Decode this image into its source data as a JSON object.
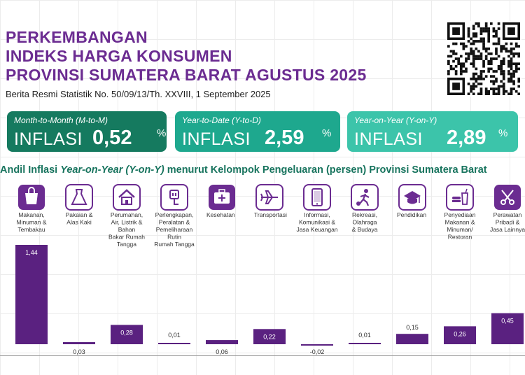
{
  "header": {
    "title_lines": [
      "PERKEMBANGAN",
      "INDEKS HARGA KONSUMEN",
      "PROVINSI SUMATERA BARAT AGUSTUS 2025"
    ],
    "subtitle": "Berita Resmi Statistik No. 50/09/13/Th. XXVIII, 1 September 2025"
  },
  "cards": [
    {
      "title": "Month-to-Month (M-to-M)",
      "word": "INFLASI",
      "value": "0,52",
      "pct": "%",
      "color": "#157a5f"
    },
    {
      "title": "Year-to-Date (Y-to-D)",
      "word": "INFLASI",
      "value": "2,59",
      "pct": "%",
      "color": "#1ea88e"
    },
    {
      "title": "Year-on-Year (Y-on-Y)",
      "word": "INFLASI",
      "value": "2,89",
      "pct": "%",
      "color": "#3cc4aa"
    }
  ],
  "chart_title": {
    "part1": "Andil Inflasi ",
    "part2": "Year-on-Year (Y-on-Y)",
    "part3": " menurut Kelompok Pengeluaran (persen) Provinsi Sumatera Barat"
  },
  "colors": {
    "title": "#6b2c91",
    "bar": "#5a2180",
    "icon": "#6b2c91",
    "chart_title": "#18745e"
  },
  "chart_data": {
    "type": "bar",
    "categories": [
      "Makanan, Minuman & Tembakau",
      "Pakaian & Alas Kaki",
      "Perumahan, Air, Listrik & Bahan Bakar Rumah Tangga",
      "Perlengkapan, Peralatan & Pemeliharaan Rutin Rumah Tangga",
      "Kesehatan",
      "Transportasi",
      "Informasi, Komunikasi & Jasa Keuangan",
      "Rekreasi, Olahraga & Budaya",
      "Pendidikan",
      "Penyediaan Makanan & Minuman/ Restoran",
      "Perawatan Pribadi & Jasa Lainnya"
    ],
    "category_lines": [
      [
        "Makanan,",
        "Minuman &",
        "Tembakau"
      ],
      [
        "Pakaian &",
        "Alas Kaki"
      ],
      [
        "Perumahan,",
        "Air, Listrik &",
        "Bahan",
        "Bakar Rumah",
        "Tangga"
      ],
      [
        "Perlengkapan,",
        "Peralatan &",
        "Pemeliharaan",
        "Rutin",
        "Rumah Tangga"
      ],
      [
        "Kesehatan"
      ],
      [
        "Transportasi"
      ],
      [
        "Informasi,",
        "Komunikasi &",
        "Jasa Keuangan"
      ],
      [
        "Rekreasi,",
        "Olahraga",
        "& Budaya"
      ],
      [
        "Pendidikan"
      ],
      [
        "Penyediaan",
        "Makanan &",
        "Minuman/",
        "Restoran"
      ],
      [
        "Perawatan",
        "Pribadi &",
        "Jasa Lainnya"
      ]
    ],
    "icons": [
      "grocery-bag-icon",
      "dress-icon",
      "house-icon",
      "plug-icon",
      "medical-kit-icon",
      "airplane-icon",
      "smartphone-icon",
      "soccer-player-icon",
      "graduation-cap-icon",
      "fast-food-icon",
      "scissors-tools-icon"
    ],
    "values": [
      1.44,
      0.03,
      0.28,
      0.01,
      0.06,
      0.22,
      -0.02,
      0.01,
      0.15,
      0.26,
      0.45
    ],
    "value_labels": [
      "1,44",
      "0,03",
      "0,28",
      "0,01",
      "0,06",
      "0,22",
      "-0,02",
      "0,01",
      "0,15",
      "0,26",
      "0,45"
    ],
    "ylim": [
      -0.02,
      1.44
    ],
    "grid": true,
    "legend": "none"
  }
}
